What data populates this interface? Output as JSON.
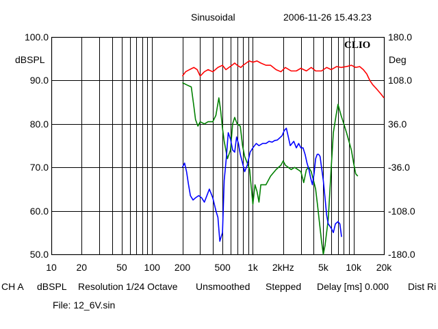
{
  "header": {
    "mode": "Sinusoidal",
    "timestamp": "2006-11-26 15.43.23",
    "logo": "CLIO"
  },
  "footer": {
    "channel": "CH A",
    "units": "dBSPL",
    "resolution": "Resolution 1/24 Octave",
    "smoothing": "Unsmoothed",
    "sweep": "Stepped",
    "delay": "Delay [ms] 0.000",
    "dist": "Dist Ri",
    "file": "File: 12_6V.sin"
  },
  "colors": {
    "red": "#ff0000",
    "green": "#008000",
    "blue": "#0000ff",
    "grid": "#000000"
  },
  "chart_data": {
    "type": "line",
    "x_scale": "log",
    "xlim": [
      10,
      20000
    ],
    "ylim": [
      50,
      100
    ],
    "y2lim": [
      -180,
      180
    ],
    "ylabel": "dBSPL",
    "y2label": "Deg",
    "grid": true,
    "x_ticks": [
      10,
      20,
      50,
      100,
      200,
      500,
      1000,
      2000,
      5000,
      10000,
      20000
    ],
    "x_tick_labels": [
      "10",
      "20",
      "50",
      "100",
      "200",
      "500",
      "1k",
      "2kHz",
      "5k",
      "10k",
      "20k"
    ],
    "y_ticks": [
      50,
      60,
      70,
      80,
      90,
      100
    ],
    "y_tick_labels": [
      "50.0",
      "60.0",
      "70.0",
      "80.0",
      "90.0",
      "100.0"
    ],
    "y2_ticks": [
      -180,
      -108,
      -36,
      36,
      108,
      180
    ],
    "y2_tick_labels": [
      "-180.0",
      "-108.0",
      "-36.0",
      "36.0",
      "108.0",
      "180.0"
    ],
    "series": [
      {
        "color": "#ff0000",
        "x": [
          200,
          215,
          235,
          260,
          280,
          300,
          330,
          360,
          400,
          450,
          500,
          540,
          580,
          620,
          660,
          700,
          760,
          800,
          860,
          920,
          1000,
          1100,
          1200,
          1350,
          1500,
          1700,
          1900,
          2100,
          2400,
          2700,
          3000,
          3400,
          3800,
          4200,
          4800,
          5400,
          6000,
          6800,
          7500,
          8500,
          9500,
          10500,
          11500,
          12500,
          13500,
          14500,
          15500,
          17000,
          18500,
          20000
        ],
        "y": [
          91,
          92,
          92.5,
          93,
          92.5,
          91,
          92,
          92.5,
          92,
          93,
          93.5,
          92.5,
          93,
          93.5,
          94,
          93.5,
          93,
          93.5,
          94,
          94.5,
          94.2,
          94.5,
          94,
          93.5,
          93.5,
          92.5,
          92,
          93,
          92.2,
          92.2,
          92.8,
          92.2,
          93,
          92.2,
          92.2,
          93,
          92.5,
          93.2,
          93,
          93.2,
          93.5,
          93,
          93.2,
          92.5,
          91.5,
          90,
          89,
          88,
          87,
          86
        ]
      },
      {
        "color": "#008000",
        "x": [
          200,
          220,
          245,
          260,
          270,
          285,
          300,
          330,
          360,
          400,
          430,
          460,
          480,
          500,
          520,
          560,
          600,
          630,
          660,
          700,
          750,
          790,
          830,
          880,
          930,
          960,
          1000,
          1050,
          1100,
          1150,
          1200,
          1350,
          1500,
          1700,
          1900,
          2000,
          2100,
          2250,
          2400,
          2600,
          2800,
          3000,
          3200,
          3400,
          3600,
          3800,
          4000,
          4200,
          4400,
          4600,
          4800,
          5000,
          5200,
          5600,
          6000,
          6300,
          6700,
          7000,
          7500,
          8000,
          8500,
          9000,
          9500,
          10000,
          10500,
          11000
        ],
        "y": [
          89.5,
          89,
          88.5,
          84,
          81,
          79.5,
          80.5,
          80,
          80.5,
          80.5,
          82,
          86,
          83,
          79,
          76,
          72,
          74,
          80,
          81.5,
          80,
          79.5,
          75,
          72.5,
          71,
          69.5,
          66,
          61.5,
          66,
          64.5,
          62,
          66,
          66,
          68,
          69.5,
          70.5,
          71.5,
          70.5,
          70,
          69.5,
          70,
          69.5,
          69,
          66.5,
          69.5,
          70,
          69,
          67,
          65,
          61,
          57,
          53,
          50,
          52,
          58,
          70,
          78,
          82,
          84.5,
          82,
          80,
          78,
          76,
          74,
          71,
          68.5,
          68
        ]
      },
      {
        "color": "#0000ff",
        "x": [
          200,
          210,
          220,
          230,
          240,
          255,
          270,
          290,
          310,
          330,
          350,
          370,
          385,
          400,
          415,
          430,
          450,
          470,
          500,
          520,
          545,
          570,
          600,
          630,
          660,
          690,
          720,
          750,
          790,
          830,
          880,
          940,
          1000,
          1080,
          1150,
          1250,
          1350,
          1450,
          1550,
          1650,
          1750,
          1850,
          1950,
          2050,
          2150,
          2250,
          2350,
          2450,
          2550,
          2700,
          2850,
          3000,
          3150,
          3300,
          3450,
          3600,
          3750,
          3900,
          4050,
          4200,
          4350,
          4500,
          4650,
          4800,
          5000,
          5200,
          5400,
          5600,
          5800,
          6000,
          6300,
          6600,
          7000,
          7300,
          7600
        ],
        "y": [
          70,
          71,
          69,
          66,
          63.5,
          62.5,
          63,
          63.5,
          63,
          62,
          63.5,
          65,
          64,
          63,
          61.5,
          60,
          58.5,
          53,
          55,
          67,
          72,
          78,
          76.5,
          74,
          73.5,
          77,
          75.5,
          73,
          71,
          69,
          70.5,
          73.5,
          74.5,
          75.5,
          75,
          75.5,
          75.5,
          76,
          75.8,
          76.2,
          76.3,
          76.8,
          77.3,
          78.5,
          79,
          77,
          75,
          75.5,
          76,
          74.5,
          75.5,
          74.5,
          74.5,
          73,
          71,
          69.5,
          67.5,
          66,
          68.5,
          72,
          73,
          73,
          72.5,
          70,
          67,
          63,
          59,
          57,
          56.5,
          56,
          55,
          57,
          57.5,
          57,
          54
        ]
      }
    ]
  }
}
